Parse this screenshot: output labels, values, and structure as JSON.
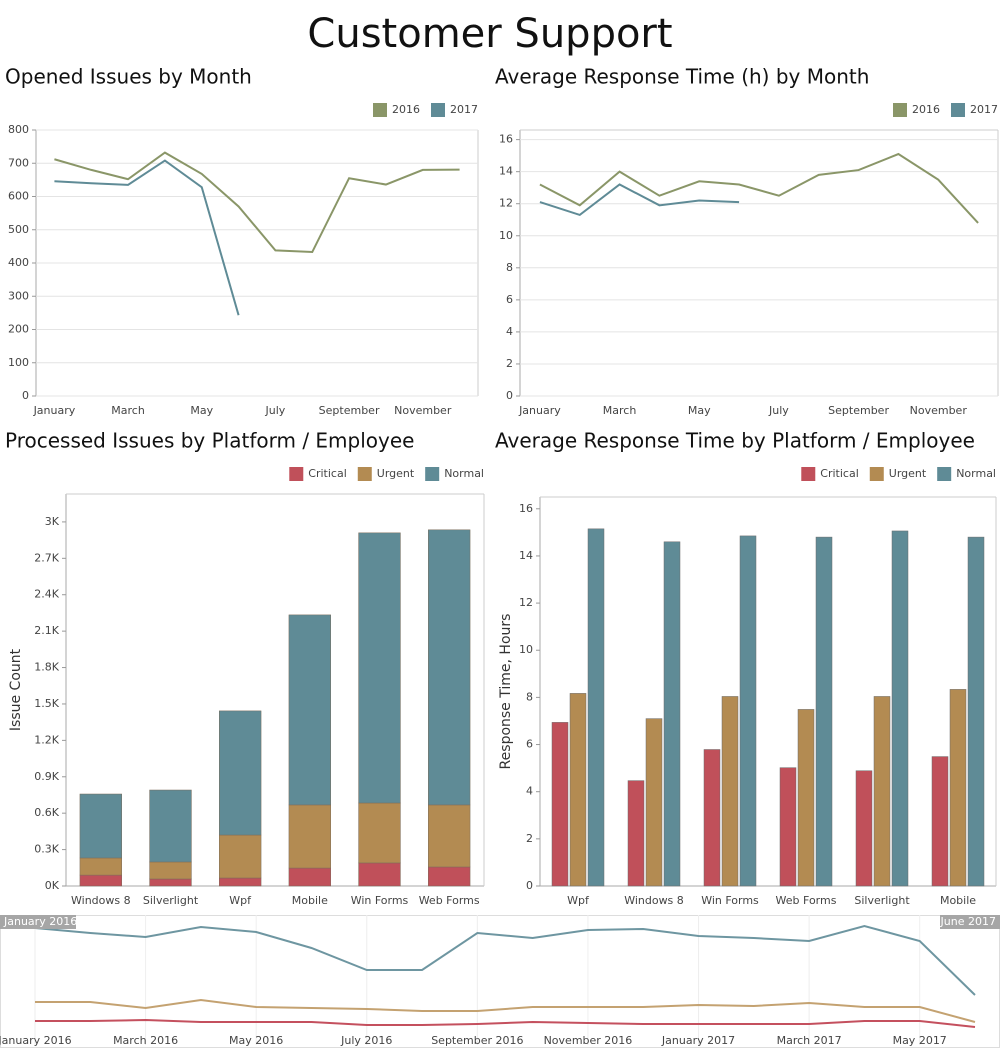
{
  "title": "Customer Support",
  "chart_data": [
    {
      "type": "line",
      "title": "Opened Issues by Month",
      "categories": [
        "January",
        null,
        "March",
        null,
        "May",
        null,
        "July",
        null,
        "September",
        null,
        "November",
        null
      ],
      "series": [
        {
          "name": "2016",
          "color": "#8a9668",
          "values": [
            712,
            680,
            652,
            732,
            668,
            570,
            438,
            433,
            655,
            636,
            680,
            681
          ]
        },
        {
          "name": "2017",
          "color": "#5f8b96",
          "values": [
            646,
            640,
            635,
            708,
            628,
            243,
            null,
            null,
            null,
            null,
            null,
            null
          ]
        }
      ],
      "ylim": [
        0,
        800
      ],
      "yticks": [
        0,
        100,
        200,
        300,
        400,
        500,
        600,
        700,
        800
      ],
      "grid": true,
      "legend": "top-right"
    },
    {
      "type": "line",
      "title": "Average Response Time (h) by Month",
      "categories": [
        "January",
        null,
        "March",
        null,
        "May",
        null,
        "July",
        null,
        "September",
        null,
        "November",
        null
      ],
      "series": [
        {
          "name": "2016",
          "color": "#8a9668",
          "values": [
            13.2,
            11.9,
            14.0,
            12.5,
            13.4,
            13.2,
            12.5,
            13.8,
            14.1,
            15.1,
            13.5,
            10.8
          ]
        },
        {
          "name": "2017",
          "color": "#5f8b96",
          "values": [
            12.1,
            11.3,
            13.2,
            11.9,
            12.2,
            12.1,
            null,
            null,
            null,
            null,
            null,
            null
          ]
        }
      ],
      "ylim": [
        0,
        16.6
      ],
      "yticks": [
        0,
        2,
        4,
        6,
        8,
        10,
        12,
        14,
        16
      ],
      "grid": true,
      "legend": "top-right"
    },
    {
      "type": "stacked_bar",
      "title": "Processed Issues by Platform / Employee",
      "y_label": "Issue Count",
      "categories": [
        "Windows 8",
        "Silverlight",
        "Wpf",
        "Mobile",
        "Win Forms",
        "Web Forms"
      ],
      "series": [
        {
          "name": "Critical",
          "color": "#c0505a",
          "values": [
            90,
            58,
            66,
            148,
            190,
            157
          ]
        },
        {
          "name": "Urgent",
          "color": "#b38b52",
          "values": [
            141,
            140,
            354,
            520,
            494,
            511
          ]
        },
        {
          "name": "Normal",
          "color": "#5f8b96",
          "values": [
            527,
            593,
            1023,
            1566,
            2226,
            2267
          ]
        }
      ],
      "ylim": [
        0,
        3230
      ],
      "yticks": [
        {
          "value": 0,
          "label": "0K"
        },
        {
          "value": 300,
          "label": "0.3K"
        },
        {
          "value": 600,
          "label": "0.6K"
        },
        {
          "value": 900,
          "label": "0.9K"
        },
        {
          "value": 1200,
          "label": "1.2K"
        },
        {
          "value": 1500,
          "label": "1.5K"
        },
        {
          "value": 1800,
          "label": "1.8K"
        },
        {
          "value": 2100,
          "label": "2.1K"
        },
        {
          "value": 2400,
          "label": "2.4K"
        },
        {
          "value": 2700,
          "label": "2.7K"
        },
        {
          "value": 3000,
          "label": "3K"
        }
      ],
      "grid": false,
      "legend": "top-right"
    },
    {
      "type": "bar",
      "title": "Average Response Time by Platform / Employee",
      "y_label": "Response Time, Hours",
      "categories": [
        "Wpf",
        "Windows 8",
        "Win Forms",
        "Web Forms",
        "Silverlight",
        "Mobile"
      ],
      "series": [
        {
          "name": "Critical",
          "color": "#c0505a",
          "values": [
            6.94,
            4.47,
            5.79,
            5.02,
            4.89,
            5.49
          ]
        },
        {
          "name": "Urgent",
          "color": "#b38b52",
          "values": [
            8.17,
            7.1,
            8.04,
            7.49,
            8.04,
            8.34
          ]
        },
        {
          "name": "Normal",
          "color": "#5f8b96",
          "values": [
            15.15,
            14.6,
            14.85,
            14.8,
            15.06,
            14.8
          ]
        }
      ],
      "ylim": [
        0,
        16.5
      ],
      "yticks": [
        0,
        2,
        4,
        6,
        8,
        10,
        12,
        14,
        16
      ],
      "grid": false,
      "legend": "top-right"
    },
    {
      "type": "overview",
      "range_start": "January 2016",
      "range_end": "June 2017",
      "categories": [
        "January 2016",
        null,
        "March 2016",
        null,
        "May 2016",
        null,
        "July 2016",
        null,
        "September 2016",
        null,
        "November 2016",
        null,
        "January 2017",
        null,
        "March 2017",
        null,
        "May 2017",
        null
      ],
      "series": [
        {
          "color": "#6e96a1",
          "values": [
            585,
            560,
            540,
            590,
            565,
            485,
            375,
            375,
            560,
            535,
            575,
            580,
            545,
            535,
            520,
            595,
            520,
            250
          ]
        },
        {
          "color": "#c4a271",
          "values": [
            215,
            215,
            185,
            225,
            190,
            185,
            180,
            170,
            170,
            190,
            190,
            190,
            200,
            195,
            210,
            190,
            190,
            115
          ]
        },
        {
          "color": "#c4505e",
          "values": [
            120,
            120,
            125,
            115,
            115,
            115,
            100,
            100,
            105,
            115,
            110,
            105,
            105,
            105,
            105,
            120,
            120,
            90
          ]
        }
      ],
      "ylim": [
        0,
        650
      ]
    }
  ]
}
